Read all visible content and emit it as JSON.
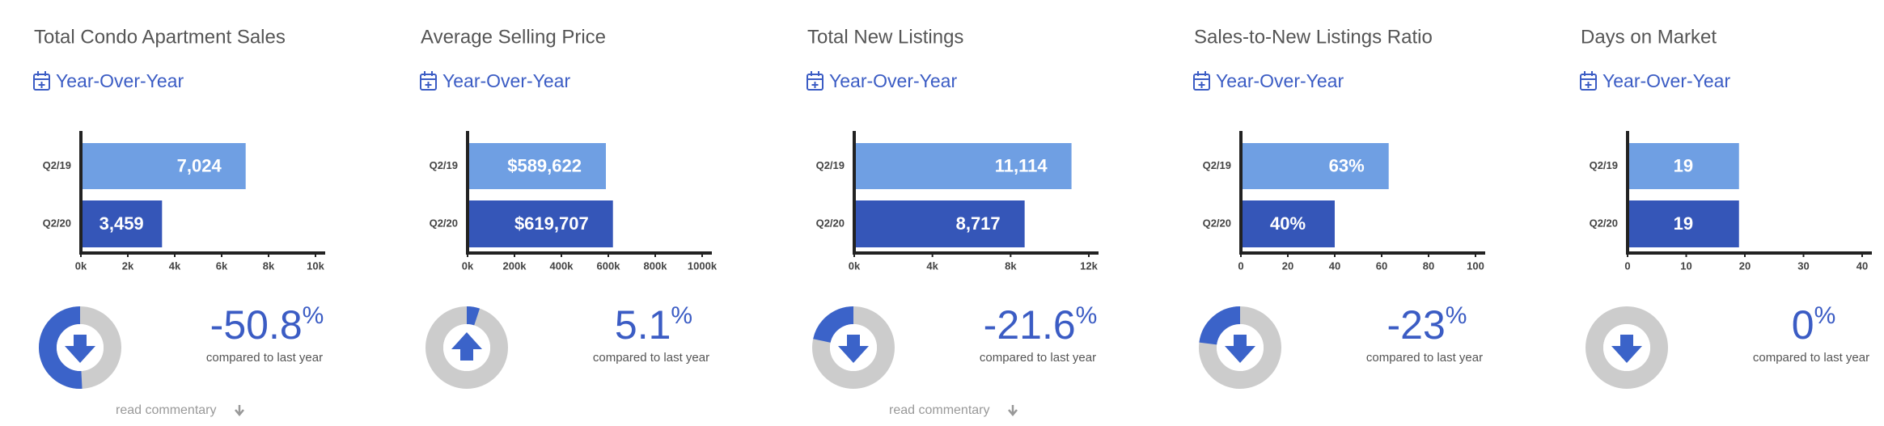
{
  "chart_data": [
    {
      "type": "bar",
      "orientation": "horizontal",
      "title": "Total Condo Apartment Sales",
      "subtitle": "Year-Over-Year",
      "categories": [
        "Q2/19",
        "Q2/20"
      ],
      "values": [
        7024,
        3459
      ],
      "value_labels": [
        "7,024",
        "3,459"
      ],
      "colors": [
        "#6f9fe3",
        "#3556b8"
      ],
      "xlim": [
        0,
        10000
      ],
      "xticks": [
        {
          "value": 0,
          "label": "0k"
        },
        {
          "value": 2000,
          "label": "2k"
        },
        {
          "value": 4000,
          "label": "4k"
        },
        {
          "value": 6000,
          "label": "6k"
        },
        {
          "value": 8000,
          "label": "8k"
        },
        {
          "value": 10000,
          "label": "10k"
        }
      ],
      "change": -50.8,
      "change_unit": "%",
      "change_note": "compared to last year",
      "commentary": "read commentary"
    },
    {
      "type": "bar",
      "orientation": "horizontal",
      "title": "Average Selling Price",
      "subtitle": "Year-Over-Year",
      "categories": [
        "Q2/19",
        "Q2/20"
      ],
      "values": [
        589622,
        619707
      ],
      "value_labels": [
        "$589,622",
        "$619,707"
      ],
      "colors": [
        "#6f9fe3",
        "#3556b8"
      ],
      "xlim": [
        0,
        1000000
      ],
      "xticks": [
        {
          "value": 0,
          "label": "0k"
        },
        {
          "value": 200000,
          "label": "200k"
        },
        {
          "value": 400000,
          "label": "400k"
        },
        {
          "value": 600000,
          "label": "600k"
        },
        {
          "value": 800000,
          "label": "800k"
        },
        {
          "value": 1000000,
          "label": "1000k"
        }
      ],
      "change": 5.1,
      "change_unit": "%",
      "change_note": "compared to last year"
    },
    {
      "type": "bar",
      "orientation": "horizontal",
      "title": "Total New Listings",
      "subtitle": "Year-Over-Year",
      "categories": [
        "Q2/19",
        "Q2/20"
      ],
      "values": [
        11114,
        8717
      ],
      "value_labels": [
        "11,114",
        "8,717"
      ],
      "colors": [
        "#6f9fe3",
        "#3556b8"
      ],
      "xlim": [
        0,
        12000
      ],
      "xticks": [
        {
          "value": 0,
          "label": "0k"
        },
        {
          "value": 4000,
          "label": "4k"
        },
        {
          "value": 8000,
          "label": "8k"
        },
        {
          "value": 12000,
          "label": "12k"
        }
      ],
      "change": -21.6,
      "change_unit": "%",
      "change_note": "compared to last year",
      "commentary": "read commentary"
    },
    {
      "type": "bar",
      "orientation": "horizontal",
      "title": "Sales-to-New Listings Ratio",
      "subtitle": "Year-Over-Year",
      "categories": [
        "Q2/19",
        "Q2/20"
      ],
      "values": [
        63,
        40
      ],
      "value_labels": [
        "63%",
        "40%"
      ],
      "colors": [
        "#6f9fe3",
        "#3556b8"
      ],
      "xlim": [
        0,
        100
      ],
      "xticks": [
        0,
        20,
        40,
        60,
        80,
        100
      ],
      "change": -23,
      "change_unit": "%",
      "change_note": "compared to last year"
    },
    {
      "type": "bar",
      "orientation": "horizontal",
      "title": "Days on Market",
      "subtitle": "Year-Over-Year",
      "categories": [
        "Q2/19",
        "Q2/20"
      ],
      "values": [
        19,
        19
      ],
      "colors": [
        "#6f9fe3",
        "#3556b8"
      ],
      "xlim": [
        0,
        40
      ],
      "xticks": [
        0,
        10,
        20,
        30,
        40
      ],
      "change": 0,
      "change_unit": "%",
      "change_note": "compared to last year"
    }
  ]
}
